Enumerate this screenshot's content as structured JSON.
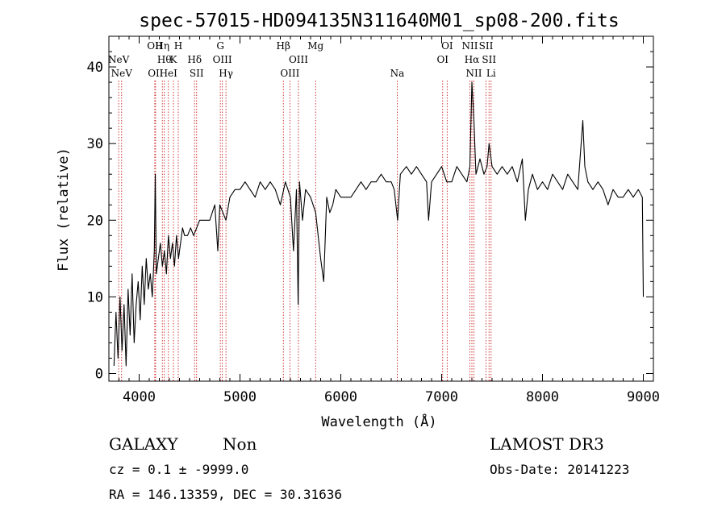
{
  "chart_data": {
    "type": "line",
    "title": "spec-57015-HD094135N311640M01_sp08-200.fits",
    "xlabel": "Wavelength (Å)",
    "ylabel": "Flux (relative)",
    "xlim": [
      3700,
      9100
    ],
    "ylim": [
      -1,
      44
    ],
    "xticks": [
      4000,
      5000,
      6000,
      7000,
      8000,
      9000
    ],
    "yticks": [
      0,
      10,
      20,
      30,
      40
    ],
    "grid": false,
    "legend": "none",
    "line_color": "#000000",
    "marker_line_color": "#cc2222",
    "series": [
      {
        "x": [
          3750,
          3770,
          3790,
          3810,
          3830,
          3850,
          3870,
          3890,
          3910,
          3930,
          3950,
          3970,
          3990,
          4010,
          4030,
          4050,
          4070,
          4090,
          4110,
          4130,
          4150,
          4160,
          4170,
          4190,
          4210,
          4230,
          4250,
          4270,
          4290,
          4310,
          4330,
          4350,
          4370,
          4390,
          4410,
          4430,
          4450,
          4480,
          4510,
          4540,
          4570,
          4600,
          4650,
          4700,
          4750,
          4780,
          4800,
          4830,
          4861,
          4900,
          4950,
          5000,
          5050,
          5100,
          5150,
          5200,
          5250,
          5300,
          5350,
          5400,
          5450,
          5500,
          5530,
          5560,
          5577,
          5590,
          5620,
          5650,
          5700,
          5750,
          5800,
          5830,
          5860,
          5890,
          5920,
          5950,
          6000,
          6050,
          6100,
          6150,
          6200,
          6250,
          6300,
          6350,
          6400,
          6450,
          6500,
          6530,
          6563,
          6590,
          6650,
          6700,
          6750,
          6800,
          6850,
          6870,
          6900,
          6950,
          7000,
          7050,
          7100,
          7150,
          7200,
          7250,
          7280,
          7300,
          7320,
          7340,
          7380,
          7420,
          7450,
          7470,
          7500,
          7550,
          7600,
          7650,
          7700,
          7750,
          7800,
          7830,
          7860,
          7900,
          7950,
          8000,
          8050,
          8100,
          8150,
          8200,
          8250,
          8300,
          8350,
          8400,
          8420,
          8450,
          8500,
          8550,
          8600,
          8650,
          8700,
          8750,
          8800,
          8850,
          8900,
          8950,
          8990,
          9000
        ],
        "y": [
          1,
          8,
          2,
          10,
          3,
          9,
          1,
          11,
          5,
          13,
          4,
          9,
          12,
          7,
          14,
          9,
          15,
          11,
          13,
          10,
          16,
          26,
          13,
          15,
          17,
          14,
          16,
          13,
          18,
          15,
          17,
          14,
          18,
          15,
          17,
          19,
          18,
          18,
          19,
          18,
          19,
          20,
          20,
          20,
          22,
          16,
          22,
          21,
          20,
          23,
          24,
          24,
          25,
          24,
          23,
          25,
          24,
          25,
          24,
          22,
          25,
          23,
          16,
          24,
          9,
          25,
          20,
          24,
          23,
          21,
          15,
          12,
          23,
          21,
          22,
          24,
          23,
          23,
          23,
          24,
          25,
          24,
          25,
          25,
          26,
          25,
          25,
          24,
          20,
          26,
          27,
          26,
          27,
          26,
          25,
          20,
          25,
          26,
          27,
          25,
          25,
          27,
          26,
          25,
          27,
          38,
          33,
          26,
          28,
          26,
          27,
          30,
          27,
          26,
          27,
          26,
          27,
          25,
          28,
          20,
          24,
          26,
          24,
          25,
          24,
          26,
          25,
          24,
          26,
          25,
          24,
          33,
          27,
          25,
          24,
          25,
          24,
          22,
          24,
          23,
          23,
          24,
          23,
          24,
          23,
          10
        ]
      }
    ],
    "line_markers": [
      {
        "x": 3797,
        "label": "NeV",
        "row": 2
      },
      {
        "x": 3826,
        "label": "NeV",
        "row": 3
      },
      {
        "x": 4155,
        "label": "OII",
        "row": 1
      },
      {
        "x": 4163,
        "label": "OII",
        "row": 3
      },
      {
        "x": 4230,
        "label": "Hη",
        "row": 1
      },
      {
        "x": 4250,
        "label": "Hθ",
        "row": 2
      },
      {
        "x": 4290,
        "label": "HeI",
        "row": 3
      },
      {
        "x": 4340,
        "label": "K",
        "row": 2
      },
      {
        "x": 4388,
        "label": "H",
        "row": 1
      },
      {
        "x": 4550,
        "label": "Hδ",
        "row": 2
      },
      {
        "x": 4570,
        "label": "SII",
        "row": 3
      },
      {
        "x": 4805,
        "label": "G",
        "row": 1
      },
      {
        "x": 4825,
        "label": "OIII",
        "row": 2
      },
      {
        "x": 4861,
        "label": "Hγ",
        "row": 3
      },
      {
        "x": 5430,
        "label": "Hβ",
        "row": 1
      },
      {
        "x": 5495,
        "label": "OIII",
        "row": 3
      },
      {
        "x": 5580,
        "label": "OIII",
        "row": 2
      },
      {
        "x": 5750,
        "label": "Mg",
        "row": 1
      },
      {
        "x": 6560,
        "label": "Na",
        "row": 3
      },
      {
        "x": 7010,
        "label": "OI",
        "row": 2
      },
      {
        "x": 7055,
        "label": "OI",
        "row": 1
      },
      {
        "x": 7280,
        "label": "NII",
        "row": 1
      },
      {
        "x": 7300,
        "label": "Hα",
        "row": 2
      },
      {
        "x": 7320,
        "label": "NII",
        "row": 3
      },
      {
        "x": 7440,
        "label": "SII",
        "row": 1
      },
      {
        "x": 7470,
        "label": "SII",
        "row": 2
      },
      {
        "x": 7490,
        "label": "Li",
        "row": 3
      }
    ]
  },
  "info": {
    "object_class": "GALAXY",
    "subclass": "Non",
    "survey": "LAMOST DR3",
    "cz_line": "cz = 0.1 ± -9999.0",
    "obs_date_line": "Obs-Date: 20141223",
    "coords_line": "RA = 146.13359, DEC =  30.31636"
  }
}
